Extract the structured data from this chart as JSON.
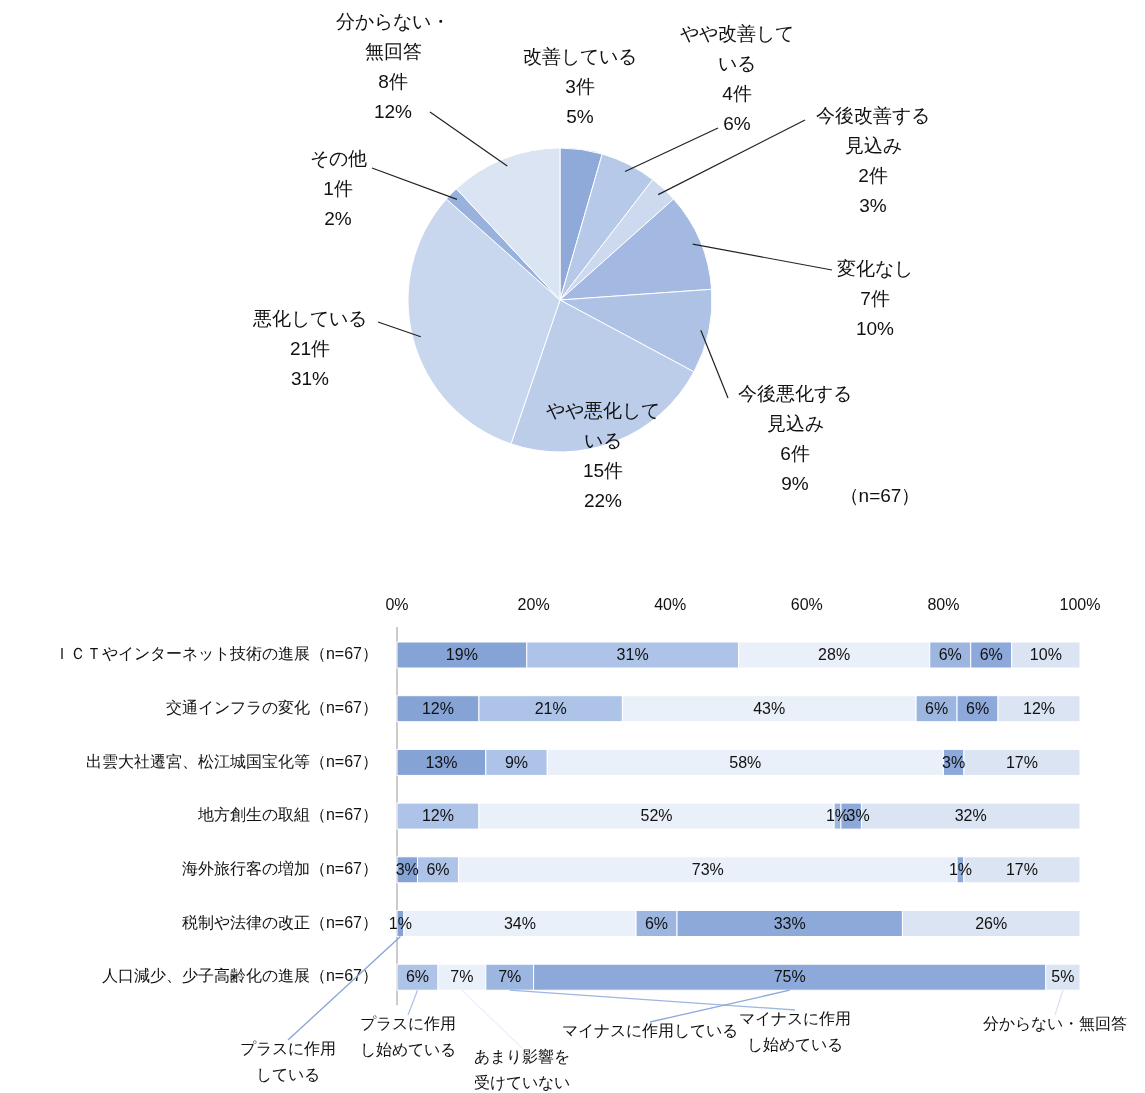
{
  "chart_data": [
    {
      "type": "pie",
      "categories": [
        "改善している",
        "やや改善している",
        "今後改善する見込み",
        "変化なし",
        "今後悪化する見込み",
        "やや悪化している",
        "悪化している",
        "その他",
        "分からない・無回答"
      ],
      "values": [
        3,
        4,
        2,
        7,
        6,
        15,
        21,
        1,
        8
      ],
      "value_labels": [
        "3件\n5%",
        "4件\n6%",
        "2件\n3%",
        "7件\n10%",
        "6件\n9%",
        "15件\n22%",
        "21件\n31%",
        "1件\n2%",
        "8件\n12%"
      ],
      "colors": [
        "#8faad9",
        "#b7c9e8",
        "#cdd9ef",
        "#a3b9e1",
        "#aec2e6",
        "#bccdea",
        "#c8d6ee",
        "#98b1dd",
        "#dbe4f2"
      ],
      "annotations": [
        "（n=67）"
      ]
    },
    {
      "type": "bar",
      "orientation": "horizontal",
      "stacked": true,
      "categories": [
        "ＩＣＴやインターネット技術の進展（n=67）",
        "交通インフラの変化（n=67）",
        "出雲大社遷宮、松江城国宝化等（n=67）",
        "地方創生の取組（n=67）",
        "海外旅行客の増加（n=67）",
        "税制や法律の改正（n=67）",
        "人口減少、少子高齢化の進展（n=67）"
      ],
      "series": [
        {
          "name": "プラスに作用している",
          "color": "#86a3d6",
          "values": [
            19,
            12,
            13,
            0,
            3,
            1,
            0
          ],
          "value_labels": [
            "19%",
            "12%",
            "13%",
            null,
            "3%",
            "1%",
            null
          ]
        },
        {
          "name": "プラスに作用し始めている",
          "color": "#adc3e7",
          "values": [
            31,
            21,
            9,
            12,
            6,
            0,
            6
          ],
          "value_labels": [
            "31%",
            "21%",
            "9%",
            "12%",
            "6%",
            null,
            "6%"
          ]
        },
        {
          "name": "あまり影響を受けていない",
          "color": "#eaf0f9",
          "values": [
            28,
            43,
            58,
            52,
            73,
            34,
            7
          ],
          "value_labels": [
            "28%",
            "43%",
            "58%",
            "52%",
            "73%",
            "34%",
            "7%"
          ]
        },
        {
          "name": "マイナスに作用し始めている",
          "color": "#9db6e0",
          "values": [
            6,
            6,
            0,
            1,
            0,
            6,
            7
          ],
          "value_labels": [
            "6%",
            "6%",
            null,
            "1%",
            null,
            "6%",
            "7%"
          ]
        },
        {
          "name": "マイナスに作用している",
          "color": "#8ca9da",
          "values": [
            6,
            6,
            3,
            3,
            1,
            33,
            75
          ],
          "value_labels": [
            "6%",
            "6%",
            "3%",
            "3%",
            "1%",
            "33%",
            "75%"
          ]
        },
        {
          "name": "分からない・無回答",
          "color": "#dbe4f2",
          "values": [
            10,
            12,
            17,
            32,
            17,
            26,
            5
          ],
          "value_labels": [
            "10%",
            "12%",
            "17%",
            "32%",
            "17%",
            "26%",
            "5%"
          ]
        }
      ],
      "xlim": [
        0,
        100
      ],
      "xticks": [
        {
          "value": 0,
          "label": "0%"
        },
        {
          "value": 20,
          "label": "20%"
        },
        {
          "value": 40,
          "label": "40%"
        },
        {
          "value": 60,
          "label": "60%"
        },
        {
          "value": 80,
          "label": "80%"
        },
        {
          "value": 100,
          "label": "100%"
        }
      ],
      "legend": "bottom"
    }
  ]
}
